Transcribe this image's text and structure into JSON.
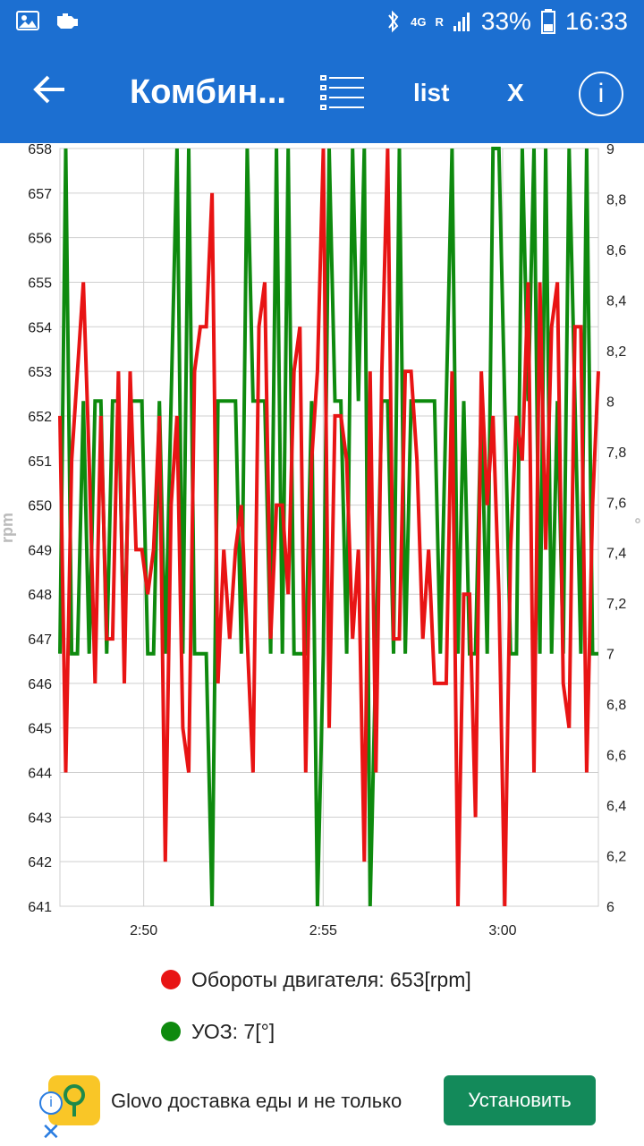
{
  "statusbar": {
    "battery": "33%",
    "time": "16:33",
    "network": "4G",
    "signal_label": "R"
  },
  "appbar": {
    "title": "Комбин...",
    "list_label": "list",
    "close_label": "X",
    "info_label": "i"
  },
  "legend": [
    {
      "label": "Обороты двигателя: 653[rpm]",
      "color": "#e81414"
    },
    {
      "label": "УОЗ: 7[°]",
      "color": "#0e8a0e"
    }
  ],
  "ad": {
    "text": "Glovo доставка еды и не только",
    "button": "Установить"
  },
  "chart_data": {
    "type": "line",
    "xlabel": "",
    "ylabel": "rpm",
    "y2label": "°",
    "x_ticks": [
      "2:50",
      "2:55",
      "3:00"
    ],
    "x_range": [
      "2:47:40",
      "3:02:40"
    ],
    "ylim": [
      641,
      658
    ],
    "y2lim": [
      6,
      9
    ],
    "y_ticks": [
      "641",
      "642",
      "643",
      "644",
      "645",
      "646",
      "647",
      "648",
      "649",
      "650",
      "651",
      "652",
      "653",
      "654",
      "655",
      "656",
      "657",
      "658"
    ],
    "y2_ticks": [
      "6",
      "6,2",
      "6,4",
      "6,6",
      "6,8",
      "7",
      "7,2",
      "7,4",
      "7,6",
      "7,8",
      "8",
      "8,2",
      "8,4",
      "8,6",
      "8,8",
      "9"
    ],
    "grid": true,
    "series": [
      {
        "name": "Обороты двигателя",
        "color": "#e81414",
        "axis": "left",
        "values": [
          652,
          644,
          651,
          653,
          655,
          651,
          646,
          652,
          647,
          647,
          653,
          646,
          653,
          649,
          649,
          648,
          649,
          652,
          642,
          650,
          652,
          645,
          644,
          653,
          654,
          654,
          657,
          646,
          649,
          647,
          649,
          650,
          647,
          644,
          654,
          655,
          647,
          650,
          650,
          648,
          653,
          654,
          644,
          651,
          653,
          658,
          645,
          652,
          652,
          651,
          647,
          649,
          642,
          653,
          644,
          653,
          658,
          647,
          647,
          653,
          653,
          651,
          647,
          649,
          646,
          646,
          646,
          653,
          641,
          648,
          648,
          643,
          653,
          650,
          652,
          648,
          641,
          649,
          652,
          651,
          655,
          644,
          655,
          649,
          654,
          655,
          646,
          645,
          654,
          654,
          644,
          650,
          653
        ]
      },
      {
        "name": "УОЗ",
        "color": "#0e8a0e",
        "axis": "right",
        "values": [
          7,
          9,
          7,
          7,
          8,
          7,
          8,
          8,
          7,
          8,
          8,
          7,
          8,
          8,
          8,
          7,
          7,
          8,
          7,
          8,
          9,
          7,
          9,
          7,
          7,
          7,
          6,
          8,
          8,
          8,
          8,
          7,
          9,
          8,
          8,
          8,
          7,
          9,
          7,
          9,
          7,
          7,
          7,
          8,
          6,
          7,
          9,
          8,
          8,
          7,
          9,
          8,
          9,
          6,
          7,
          8,
          8,
          7,
          9,
          7,
          8,
          8,
          8,
          8,
          8,
          7,
          8,
          9,
          7,
          8,
          7,
          7,
          8,
          7,
          9,
          9,
          8,
          7,
          7,
          9,
          8,
          9,
          7,
          9,
          7,
          8,
          7,
          9,
          8,
          7,
          9,
          7,
          7
        ]
      }
    ]
  }
}
